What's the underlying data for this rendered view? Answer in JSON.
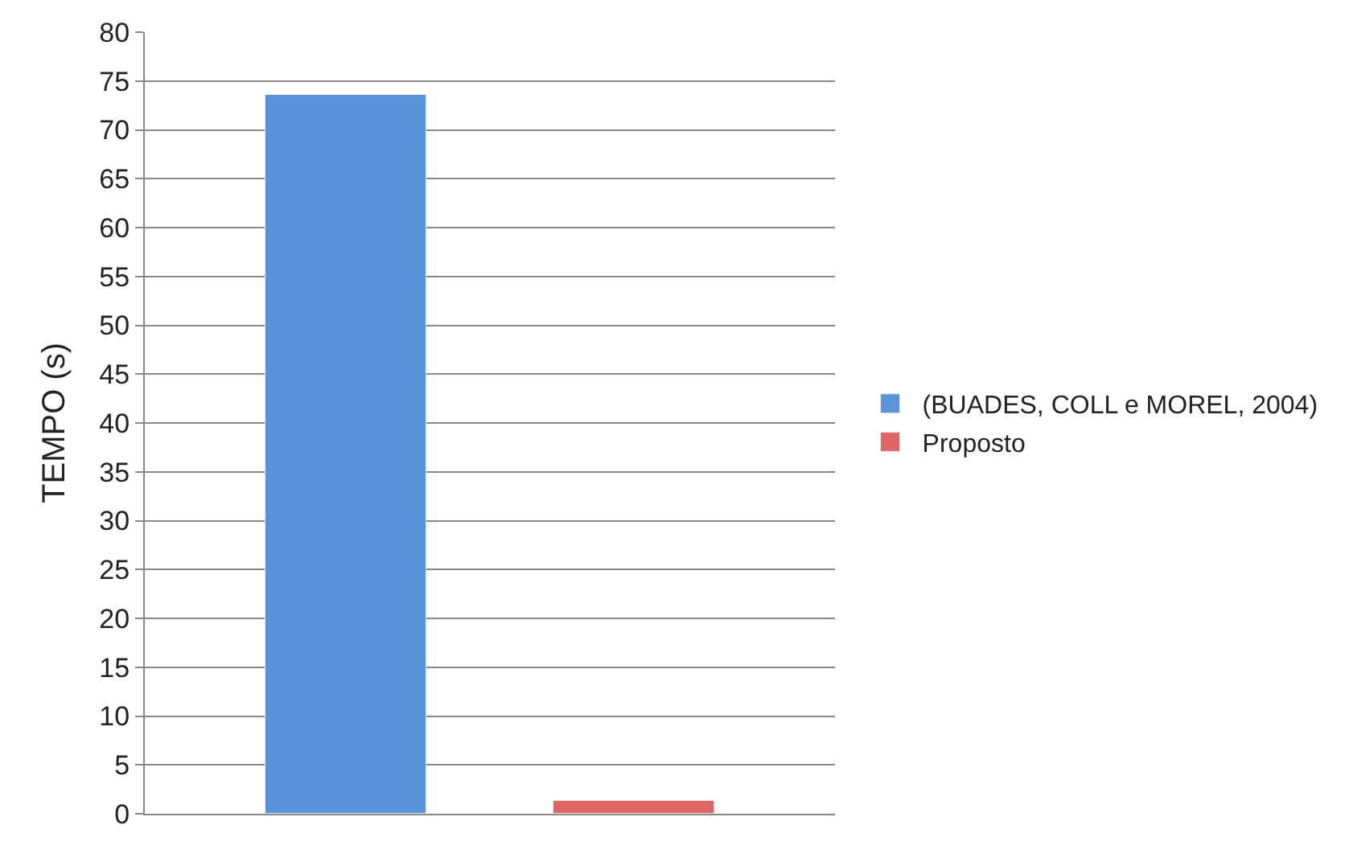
{
  "chart_data": {
    "type": "bar",
    "ylabel": "TEMPO (s)",
    "categories": [
      null
    ],
    "series": [
      {
        "name": "(BUADES, COLL e MOREL, 2004)",
        "color": "#5b93db",
        "values": [
          73.5
        ]
      },
      {
        "name": "Proposto",
        "color": "#e06666",
        "values": [
          1.3
        ]
      }
    ],
    "ylim": [
      0,
      80
    ],
    "yticks": [
      0,
      5,
      10,
      15,
      20,
      25,
      30,
      35,
      40,
      45,
      50,
      55,
      60,
      65,
      70,
      75,
      80
    ],
    "grid": "y",
    "legend": "right"
  }
}
